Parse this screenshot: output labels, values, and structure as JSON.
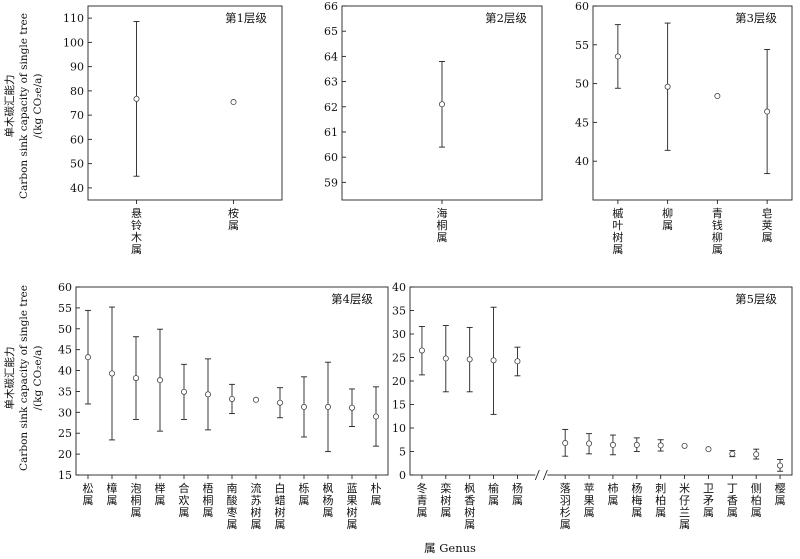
{
  "figure": {
    "ylabel_lines": [
      "单木碳汇能力",
      "Carbon sink capacity of single tree",
      "/(kg CO₂e/a)"
    ],
    "xlabel": "属 Genus"
  },
  "chart_data": [
    {
      "type": "scatter",
      "title": "第1层级",
      "ylim": [
        35,
        115
      ],
      "yticks": [
        40,
        50,
        60,
        70,
        80,
        90,
        100,
        110
      ],
      "categories": [
        "悬铃木属",
        "桉属"
      ],
      "values": [
        76.7,
        75.4
      ],
      "err_low": [
        44.8,
        null
      ],
      "err_high": [
        108.6,
        null
      ],
      "ylabel_lines": [
        "单木碳汇能力",
        "Carbon sink capacity of single tree",
        "/(kg CO₂e/a)"
      ],
      "legend": "none",
      "grid": false
    },
    {
      "type": "scatter",
      "title": "第2层级",
      "ylim": [
        58.3,
        66
      ],
      "yticks": [
        59,
        60,
        61,
        62,
        63,
        64,
        65,
        66
      ],
      "categories": [
        "海桐属"
      ],
      "values": [
        62.1
      ],
      "err_low": [
        60.4
      ],
      "err_high": [
        63.8
      ],
      "legend": "none",
      "grid": false
    },
    {
      "type": "scatter",
      "title": "第3层级",
      "ylim": [
        35,
        60
      ],
      "yticks": [
        40,
        45,
        50,
        55,
        60
      ],
      "categories": [
        "槭叶树属",
        "柳属",
        "青钱柳属",
        "皂荚属"
      ],
      "values": [
        53.5,
        49.6,
        48.4,
        46.4
      ],
      "err_low": [
        49.4,
        41.4,
        null,
        38.4
      ],
      "err_high": [
        57.6,
        57.8,
        null,
        54.4
      ],
      "legend": "none",
      "grid": false
    },
    {
      "type": "scatter",
      "title": "第4层级",
      "ylim": [
        15,
        60
      ],
      "yticks": [
        15,
        20,
        25,
        30,
        35,
        40,
        45,
        50,
        55,
        60
      ],
      "categories": [
        "松属",
        "樟属",
        "泡桐属",
        "榉属",
        "合欢属",
        "梧桐属",
        "南酸枣属",
        "流苏树属",
        "白蜡树属",
        "栎属",
        "枫杨属",
        "蓝果树属",
        "朴属"
      ],
      "values": [
        43.2,
        39.3,
        38.2,
        37.7,
        34.9,
        34.3,
        33.2,
        33.0,
        32.3,
        31.3,
        31.3,
        31.1,
        29.0
      ],
      "err_low": [
        32.0,
        23.4,
        28.3,
        25.5,
        28.3,
        25.8,
        29.7,
        null,
        28.7,
        24.1,
        20.6,
        26.6,
        21.9
      ],
      "err_high": [
        54.4,
        55.2,
        48.1,
        49.9,
        41.5,
        42.8,
        36.7,
        null,
        35.9,
        38.5,
        42.0,
        35.6,
        36.1
      ],
      "ylabel_lines": [
        "单木碳汇能力",
        "Carbon sink capacity of single tree",
        "/(kg CO₂e/a)"
      ],
      "legend": "none",
      "grid": false
    },
    {
      "type": "scatter",
      "title": "第5层级",
      "ylim": [
        0,
        40
      ],
      "yticks": [
        0,
        5,
        10,
        15,
        20,
        25,
        30,
        35,
        40
      ],
      "categories": [
        "冬青属",
        "栾树属",
        "枫香树属",
        "榆属",
        "杨属",
        "落羽杉属",
        "苹果属",
        "柿属",
        "杨梅属",
        "刺柏属",
        "米仔兰属",
        "卫矛属",
        "丁香属",
        "侧柏属",
        "樱属"
      ],
      "values": [
        26.5,
        24.8,
        24.6,
        24.4,
        24.2,
        6.8,
        6.7,
        6.4,
        6.4,
        6.3,
        6.2,
        5.5,
        4.5,
        4.4,
        2.0
      ],
      "err_low": [
        21.3,
        17.7,
        17.7,
        12.9,
        21.1,
        4.0,
        4.5,
        4.3,
        5.0,
        5.1,
        null,
        null,
        3.9,
        3.4,
        0.8
      ],
      "err_high": [
        31.6,
        31.8,
        31.4,
        35.7,
        27.2,
        9.7,
        8.8,
        8.5,
        7.9,
        7.5,
        null,
        null,
        5.2,
        5.5,
        3.3
      ],
      "break_after_index": 4,
      "legend": "none",
      "grid": false
    }
  ]
}
